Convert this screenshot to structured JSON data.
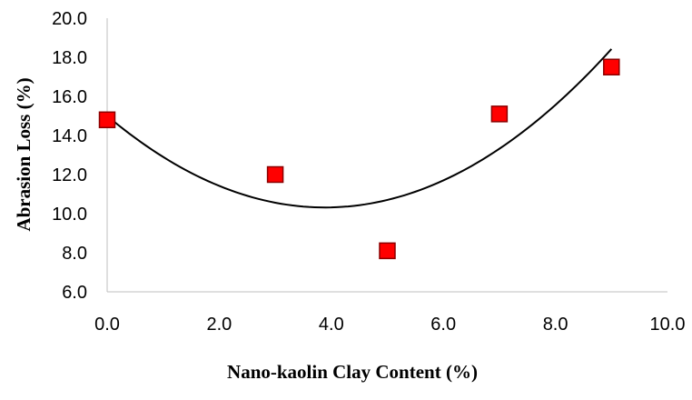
{
  "chart_data": {
    "type": "scatter",
    "title": "",
    "xlabel": "Nano-kaolin Clay Content (%)",
    "ylabel": "Abrasion Loss (%)",
    "xlim": [
      0,
      10
    ],
    "ylim": [
      6,
      20
    ],
    "x_ticks": [
      "0.0",
      "2.0",
      "4.0",
      "6.0",
      "8.0",
      "10.0"
    ],
    "y_ticks": [
      "6.0",
      "8.0",
      "10.0",
      "12.0",
      "14.0",
      "16.0",
      "18.0",
      "20.0"
    ],
    "grid": false,
    "legend": "none",
    "series": [
      {
        "marker": "square",
        "color": "#ff0000",
        "points": [
          {
            "x": 0,
            "y": 14.8
          },
          {
            "x": 3,
            "y": 12.0
          },
          {
            "x": 5,
            "y": 8.1
          },
          {
            "x": 7,
            "y": 15.1
          },
          {
            "x": 9,
            "y": 17.5
          }
        ]
      }
    ],
    "trendline": {
      "type": "polynomial",
      "order": 2,
      "color": "#000000",
      "x_range": [
        0,
        9
      ],
      "coefficients": [
        15.0,
        -2.41,
        0.31
      ]
    }
  }
}
